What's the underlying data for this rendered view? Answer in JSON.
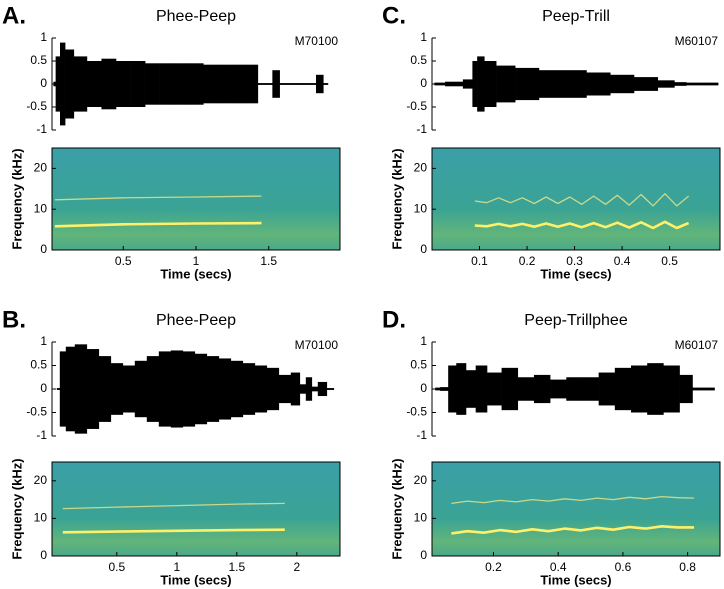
{
  "chart_data": [
    {
      "type": "area",
      "panel_label": "A.",
      "title": "Phee-Peep",
      "annotation": "M70100",
      "color": "#000000",
      "xlim": [
        0.01,
        1.99
      ],
      "ylim": [
        -1,
        1
      ],
      "yticks": [
        -1,
        -0.5,
        0,
        0.5,
        1
      ],
      "x": [
        0.02,
        0.05,
        0.08,
        0.12,
        0.2,
        0.3,
        0.4,
        0.5,
        0.6,
        0.7,
        0.8,
        0.9,
        1.0,
        1.1,
        1.2,
        1.3,
        1.4,
        1.45,
        1.5,
        1.55,
        1.6,
        1.65,
        1.8,
        1.85,
        1.9
      ],
      "values": [
        0.05,
        0.6,
        0.9,
        0.75,
        0.6,
        0.5,
        0.55,
        0.5,
        0.5,
        0.45,
        0.45,
        0.45,
        0.45,
        0.42,
        0.42,
        0.42,
        0.42,
        0.02,
        0.02,
        0.3,
        0.02,
        0.02,
        0.02,
        0.2,
        0.02
      ]
    },
    {
      "type": "line",
      "xlabel": "Time (secs)",
      "ylabel": "Frequency (kHz)",
      "xlim": [
        0.01,
        1.99
      ],
      "xticks": [
        0.5,
        1,
        1.5
      ],
      "ylim": [
        0,
        25
      ],
      "yticks": [
        0,
        10,
        20
      ],
      "series": [
        {
          "color": "#fff06a",
          "x": [
            0.03,
            0.5,
            1.0,
            1.45
          ],
          "values": [
            5.8,
            6.3,
            6.5,
            6.6
          ]
        },
        {
          "color": "#c9d98a",
          "x": [
            0.03,
            0.5,
            1.0,
            1.45
          ],
          "values": [
            12.3,
            12.8,
            13.0,
            13.2
          ]
        }
      ]
    },
    {
      "type": "area",
      "panel_label": "B.",
      "title": "Phee-Peep",
      "annotation": "M70100",
      "color": "#000000",
      "xlim": [
        -0.04,
        2.36
      ],
      "ylim": [
        -1,
        1
      ],
      "yticks": [
        -1,
        -0.5,
        0,
        0.5,
        1
      ],
      "x": [
        0.0,
        0.05,
        0.1,
        0.2,
        0.3,
        0.4,
        0.5,
        0.6,
        0.7,
        0.8,
        0.9,
        1.0,
        1.1,
        1.2,
        1.3,
        1.4,
        1.5,
        1.6,
        1.7,
        1.8,
        1.9,
        2.0,
        2.05,
        2.1,
        2.15,
        2.2,
        2.3
      ],
      "values": [
        0.02,
        0.8,
        0.9,
        0.95,
        0.85,
        0.7,
        0.55,
        0.5,
        0.6,
        0.7,
        0.8,
        0.82,
        0.8,
        0.75,
        0.7,
        0.65,
        0.6,
        0.55,
        0.5,
        0.45,
        0.3,
        0.35,
        0.1,
        0.25,
        0.05,
        0.15,
        0.02
      ]
    },
    {
      "type": "line",
      "xlabel": "Time (secs)",
      "ylabel": "Frequency (kHz)",
      "xlim": [
        -0.04,
        2.36
      ],
      "xticks": [
        0.5,
        1,
        1.5,
        2
      ],
      "ylim": [
        0,
        25
      ],
      "yticks": [
        0,
        10,
        20
      ],
      "series": [
        {
          "color": "#fff06a",
          "x": [
            0.05,
            0.5,
            1.0,
            1.5,
            1.9
          ],
          "values": [
            6.3,
            6.5,
            6.7,
            6.9,
            7.0
          ]
        },
        {
          "color": "#c9d98a",
          "x": [
            0.05,
            0.5,
            1.0,
            1.5,
            1.9
          ],
          "values": [
            12.6,
            13.0,
            13.4,
            13.8,
            14.0
          ]
        }
      ]
    },
    {
      "type": "area",
      "panel_label": "C.",
      "title": "Peep-Trill",
      "annotation": "M60107",
      "color": "#000000",
      "xlim": [
        0,
        0.606
      ],
      "ylim": [
        -1,
        1
      ],
      "yticks": [
        -1,
        -0.5,
        0,
        0.5,
        1
      ],
      "x": [
        0.005,
        0.05,
        0.08,
        0.09,
        0.1,
        0.12,
        0.15,
        0.2,
        0.25,
        0.3,
        0.35,
        0.4,
        0.45,
        0.5,
        0.52,
        0.55,
        0.6
      ],
      "values": [
        0.03,
        0.05,
        0.1,
        0.5,
        0.6,
        0.5,
        0.4,
        0.35,
        0.3,
        0.3,
        0.25,
        0.2,
        0.15,
        0.08,
        0.04,
        0.03,
        0.03
      ]
    },
    {
      "type": "line",
      "xlabel": "Time (secs)",
      "ylabel": "Frequency (kHz)",
      "xlim": [
        0,
        0.606
      ],
      "xticks": [
        0.1,
        0.2,
        0.3,
        0.4,
        0.5
      ],
      "ylim": [
        0,
        25
      ],
      "yticks": [
        0,
        10,
        20
      ],
      "series": [
        {
          "color": "#fff06a",
          "x": [
            0.09,
            0.115,
            0.14,
            0.165,
            0.19,
            0.215,
            0.24,
            0.265,
            0.29,
            0.315,
            0.34,
            0.365,
            0.39,
            0.415,
            0.44,
            0.465,
            0.49,
            0.515,
            0.54
          ],
          "values": [
            6.0,
            5.8,
            6.4,
            5.8,
            6.4,
            5.7,
            6.5,
            5.7,
            6.5,
            5.6,
            6.6,
            5.6,
            6.7,
            5.5,
            6.8,
            5.4,
            6.9,
            5.4,
            6.6
          ]
        },
        {
          "color": "#c9d98a",
          "x": [
            0.09,
            0.115,
            0.14,
            0.165,
            0.19,
            0.215,
            0.24,
            0.265,
            0.29,
            0.315,
            0.34,
            0.365,
            0.39,
            0.415,
            0.44,
            0.465,
            0.49,
            0.515,
            0.54
          ],
          "values": [
            12.0,
            11.6,
            12.8,
            11.6,
            12.8,
            11.4,
            13.0,
            11.4,
            13.0,
            11.2,
            13.2,
            11.2,
            13.4,
            11.0,
            13.6,
            10.8,
            13.8,
            10.8,
            13.2
          ]
        }
      ]
    },
    {
      "type": "area",
      "panel_label": "D.",
      "title": "Peep-Trillphee",
      "annotation": "M60107",
      "color": "#000000",
      "xlim": [
        0.01,
        0.9
      ],
      "ylim": [
        -1,
        1
      ],
      "yticks": [
        -1,
        -0.5,
        0,
        0.5,
        1
      ],
      "x": [
        0.02,
        0.05,
        0.07,
        0.1,
        0.13,
        0.16,
        0.2,
        0.25,
        0.3,
        0.35,
        0.4,
        0.45,
        0.5,
        0.55,
        0.6,
        0.65,
        0.7,
        0.75,
        0.8,
        0.83,
        0.88
      ],
      "values": [
        0.03,
        0.04,
        0.5,
        0.55,
        0.4,
        0.5,
        0.35,
        0.45,
        0.25,
        0.3,
        0.2,
        0.25,
        0.25,
        0.35,
        0.45,
        0.5,
        0.55,
        0.5,
        0.3,
        0.03,
        0.03
      ]
    },
    {
      "type": "line",
      "xlabel": "Time (secs)",
      "ylabel": "Frequency (kHz)",
      "xlim": [
        0.01,
        0.9
      ],
      "xticks": [
        0.2,
        0.4,
        0.6,
        0.8
      ],
      "ylim": [
        0,
        25
      ],
      "yticks": [
        0,
        10,
        20
      ],
      "series": [
        {
          "color": "#fff06a",
          "x": [
            0.07,
            0.12,
            0.17,
            0.22,
            0.27,
            0.32,
            0.37,
            0.42,
            0.47,
            0.52,
            0.57,
            0.62,
            0.67,
            0.72,
            0.77,
            0.82
          ],
          "values": [
            6.0,
            6.6,
            6.2,
            6.9,
            6.4,
            7.1,
            6.6,
            7.3,
            6.8,
            7.5,
            7.0,
            7.7,
            7.3,
            7.9,
            7.6,
            7.6
          ]
        },
        {
          "color": "#c9d98a",
          "x": [
            0.07,
            0.12,
            0.17,
            0.22,
            0.27,
            0.32,
            0.37,
            0.42,
            0.47,
            0.52,
            0.57,
            0.62,
            0.67,
            0.72,
            0.77,
            0.82
          ],
          "values": [
            14.0,
            14.6,
            14.2,
            14.8,
            14.4,
            15.0,
            14.6,
            15.2,
            14.8,
            15.4,
            15.0,
            15.6,
            15.2,
            15.8,
            15.5,
            15.4
          ]
        }
      ]
    }
  ]
}
